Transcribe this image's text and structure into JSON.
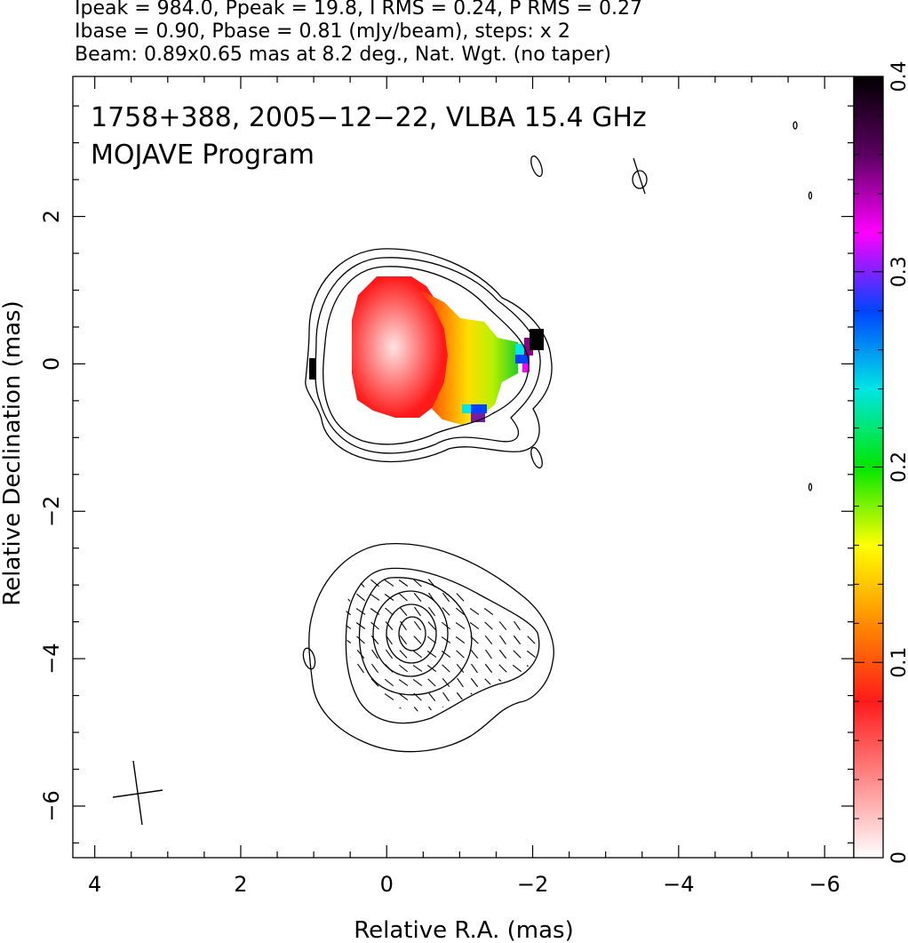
{
  "header": {
    "line1": "Ipeak = 984.0, Ppeak = 19.8, I RMS = 0.24, P RMS = 0.27",
    "line2": "Ibase = 0.90, Pbase = 0.81 (mJy/beam), steps: x 2",
    "line3": "Beam: 0.89x0.65 mas at 8.2 deg., Nat. Wgt. (no taper)"
  },
  "chart_data": [
    {
      "type": "heatmap",
      "panel": "total intensity contours with fractional polarization color map",
      "title": "1758+388, 2005−12−22, VLBA 15.4 GHz",
      "subtitle": "MOJAVE Program",
      "xlabel": "Relative R.A. (mas)",
      "ylabel": "Relative Declination (mas)",
      "xlim": [
        4.3,
        -6.4
      ],
      "ylim": [
        -6.7,
        3.9
      ],
      "x_ticks": [
        4,
        2,
        0,
        -2,
        -4,
        -6
      ],
      "y_ticks": [
        2,
        0,
        -2,
        -4,
        -6
      ],
      "x_tick_labels": [
        "4",
        "2",
        "0",
        "−2",
        "−4",
        "−6"
      ],
      "y_tick_labels": [
        "2",
        "0",
        "−2",
        "−4",
        "−6"
      ],
      "peak_position": [
        0.0,
        0.1
      ],
      "colorbar": {
        "range": [
          0,
          0.4
        ],
        "tick_labels": [
          "0",
          "0.1",
          "0.2",
          "0.3",
          "0.4"
        ],
        "colors": [
          "#ffffff",
          "#ff8a8a",
          "#ff1a1a",
          "#ff8c00",
          "#ffff00",
          "#00e600",
          "#00e5e5",
          "#0044ff",
          "#ff00ff",
          "#5a0060",
          "#000000"
        ]
      }
    },
    {
      "type": "heatmap",
      "panel": "polarized intensity contours with EVPA ticks",
      "peak_position": [
        -0.3,
        -3.8
      ]
    }
  ]
}
